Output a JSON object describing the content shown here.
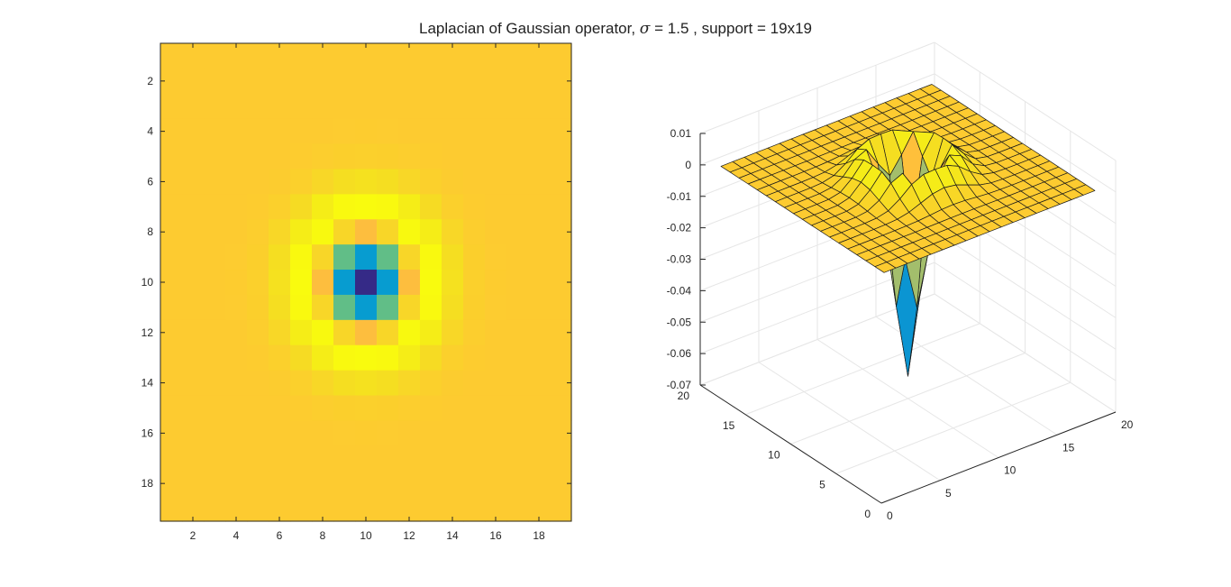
{
  "figure": {
    "title": "Laplacian of Gaussian operator, σ = 1.5 , support = 19x19",
    "title_parts": {
      "before_sigma": "Laplacian of Gaussian operator, ",
      "sigma_symbol": "σ",
      "after_sigma": " = 1.5 , support = 19x19"
    }
  },
  "colors": {
    "background": "#ffffff",
    "axis": "#262626",
    "grid": "#e6e6e6",
    "edge": "#1a1a1a"
  },
  "chart_data": [
    {
      "type": "heatmap",
      "title": "",
      "sigma": 1.5,
      "size": 19,
      "xlim": [
        0.5,
        19.5
      ],
      "ylim": [
        0.5,
        19.5
      ],
      "y_reversed": true,
      "xticks": [
        2,
        4,
        6,
        8,
        10,
        12,
        14,
        16,
        18
      ],
      "yticks": [
        2,
        4,
        6,
        8,
        10,
        12,
        14,
        16,
        18
      ],
      "colormap": "parula",
      "grid": false
    },
    {
      "type": "surface",
      "title": "",
      "sigma": 1.5,
      "size": 19,
      "xlim": [
        0,
        20
      ],
      "ylim": [
        0,
        20
      ],
      "zlim": [
        -0.07,
        0.01
      ],
      "xticks": [
        0,
        5,
        10,
        15,
        20
      ],
      "yticks": [
        0,
        5,
        10,
        15,
        20
      ],
      "zticks": [
        0.01,
        0,
        -0.01,
        -0.02,
        -0.03,
        -0.04,
        -0.05,
        -0.06,
        -0.07
      ],
      "ztick_labels": [
        "0.01",
        "0",
        "-0.01",
        "-0.02",
        "-0.03",
        "-0.04",
        "-0.05",
        "-0.06",
        "-0.07"
      ],
      "colormap": "parula",
      "grid": true
    }
  ]
}
